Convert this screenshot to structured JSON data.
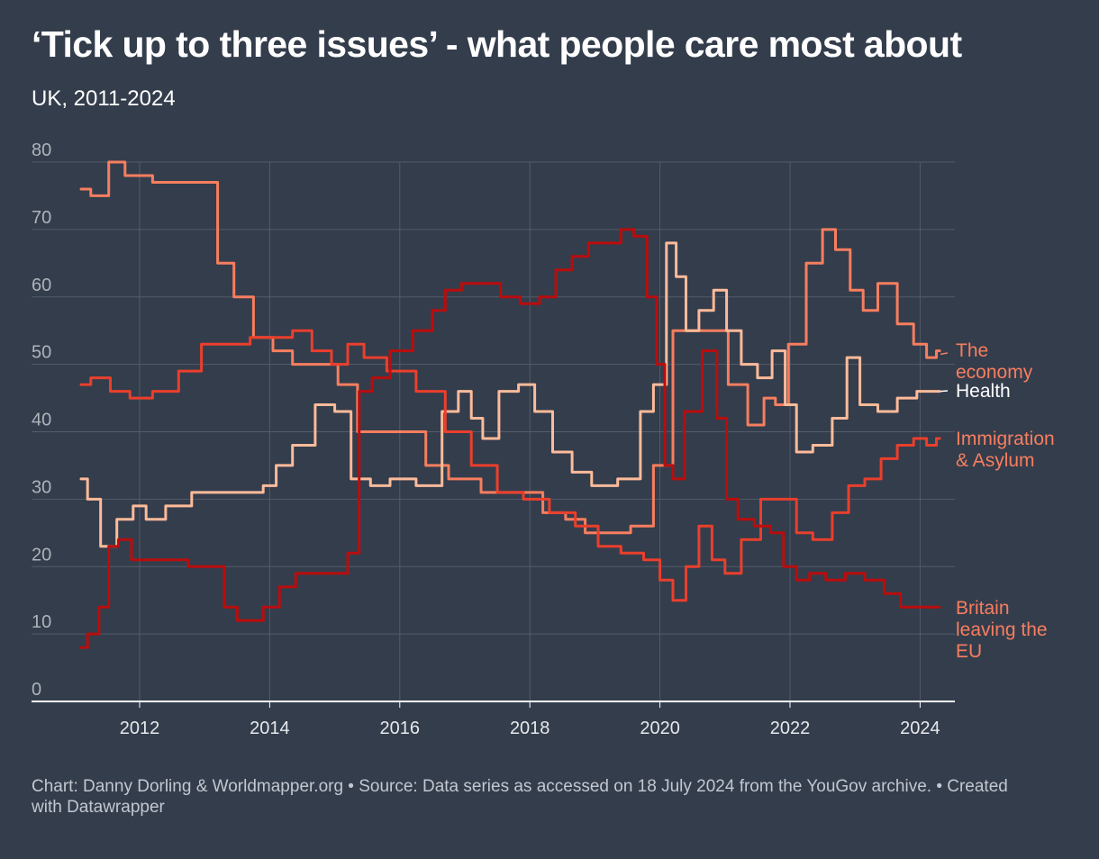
{
  "title": "‘Tick up to three issues’ - what people care most about",
  "subtitle": "UK, 2011-2024",
  "footer": "Chart: Danny Dorling & Worldmapper.org • Source: Data series as accessed on 18 July 2024 from the YouGov archive. • Created with Datawrapper",
  "colors": {
    "background": "#343d4c",
    "grid": "#535c6a",
    "tick_label": "#aeb3bb",
    "economy": "#f77e5f",
    "health": "#fdbb9a",
    "immigration": "#ea3f2c",
    "brexit": "#b90d0d"
  },
  "chart_data": {
    "type": "line",
    "title": "‘Tick up to three issues’ - what people care most about",
    "subtitle": "UK, 2011-2024",
    "xlabel": "",
    "ylabel": "",
    "xlim": [
      2011,
      2024.4
    ],
    "ylim": [
      0,
      80
    ],
    "x_ticks": [
      "2012",
      "2014",
      "2016",
      "2018",
      "2020",
      "2022",
      "2024"
    ],
    "y_ticks": [
      "0",
      "10",
      "20",
      "30",
      "40",
      "50",
      "60",
      "70",
      "80"
    ],
    "grid": true,
    "legend": "direct labels at right end of lines",
    "series": [
      {
        "name": "The economy",
        "label_lines": [
          "The",
          "economy"
        ],
        "color": "#f77e5f",
        "points": [
          [
            2011.1,
            76
          ],
          [
            2011.4,
            75
          ],
          [
            2011.65,
            80
          ],
          [
            2011.9,
            78
          ],
          [
            2012.5,
            77
          ],
          [
            2013.1,
            77
          ],
          [
            2013.3,
            65
          ],
          [
            2013.6,
            60
          ],
          [
            2013.9,
            54
          ],
          [
            2014.2,
            52
          ],
          [
            2014.5,
            50
          ],
          [
            2014.9,
            50
          ],
          [
            2015.2,
            47
          ],
          [
            2015.5,
            40
          ],
          [
            2016.3,
            40
          ],
          [
            2016.5,
            35
          ],
          [
            2017,
            33
          ],
          [
            2017.5,
            31
          ],
          [
            2018,
            31
          ],
          [
            2018.4,
            28
          ],
          [
            2018.7,
            27
          ],
          [
            2019,
            25
          ],
          [
            2019.4,
            25
          ],
          [
            2019.7,
            26
          ],
          [
            2020.1,
            35
          ],
          [
            2020.3,
            55
          ],
          [
            2020.6,
            55
          ],
          [
            2020.9,
            55
          ],
          [
            2021.2,
            47
          ],
          [
            2021.5,
            41
          ],
          [
            2021.7,
            45
          ],
          [
            2021.85,
            44
          ],
          [
            2022.1,
            53
          ],
          [
            2022.4,
            65
          ],
          [
            2022.6,
            70
          ],
          [
            2022.8,
            67
          ],
          [
            2023.05,
            61
          ],
          [
            2023.2,
            58
          ],
          [
            2023.5,
            62
          ],
          [
            2023.8,
            56
          ],
          [
            2024,
            53
          ],
          [
            2024.2,
            51
          ],
          [
            2024.3,
            52
          ]
        ]
      },
      {
        "name": "Health",
        "label_lines": [
          "Health"
        ],
        "color": "#fdbb9a",
        "points": [
          [
            2011.1,
            33
          ],
          [
            2011.3,
            30
          ],
          [
            2011.5,
            23
          ],
          [
            2011.8,
            27
          ],
          [
            2012,
            29
          ],
          [
            2012.2,
            27
          ],
          [
            2012.6,
            29
          ],
          [
            2013,
            31
          ],
          [
            2013.5,
            31
          ],
          [
            2013.8,
            31
          ],
          [
            2014,
            32
          ],
          [
            2014.2,
            35
          ],
          [
            2014.5,
            38
          ],
          [
            2014.9,
            44
          ],
          [
            2015.1,
            43
          ],
          [
            2015.4,
            33
          ],
          [
            2015.7,
            32
          ],
          [
            2016,
            33
          ],
          [
            2016.5,
            32
          ],
          [
            2016.8,
            43
          ],
          [
            2017.0,
            46
          ],
          [
            2017.2,
            42
          ],
          [
            2017.35,
            39
          ],
          [
            2017.7,
            46
          ],
          [
            2017.95,
            47
          ],
          [
            2018.2,
            43
          ],
          [
            2018.5,
            37
          ],
          [
            2018.8,
            34
          ],
          [
            2019.1,
            32
          ],
          [
            2019.6,
            33
          ],
          [
            2019.8,
            43
          ],
          [
            2020,
            47
          ],
          [
            2020.2,
            68
          ],
          [
            2020.3,
            63
          ],
          [
            2020.5,
            55
          ],
          [
            2020.7,
            58
          ],
          [
            2020.95,
            61
          ],
          [
            2021.1,
            55
          ],
          [
            2021.4,
            50
          ],
          [
            2021.6,
            48
          ],
          [
            2021.85,
            52
          ],
          [
            2022,
            44
          ],
          [
            2022.2,
            37
          ],
          [
            2022.5,
            38
          ],
          [
            2022.8,
            42
          ],
          [
            2022.95,
            51
          ],
          [
            2023.2,
            44
          ],
          [
            2023.5,
            43
          ],
          [
            2023.8,
            45
          ],
          [
            2024.1,
            46
          ],
          [
            2024.3,
            46
          ]
        ]
      },
      {
        "name": "Immigration & Asylum",
        "label_lines": [
          "Immigration",
          "& Asylum"
        ],
        "color": "#ea3f2c",
        "points": [
          [
            2011.1,
            47
          ],
          [
            2011.4,
            48
          ],
          [
            2011.7,
            46
          ],
          [
            2012,
            45
          ],
          [
            2012.4,
            46
          ],
          [
            2012.8,
            49
          ],
          [
            2013.1,
            53
          ],
          [
            2013.5,
            53
          ],
          [
            2013.9,
            54
          ],
          [
            2014.2,
            54
          ],
          [
            2014.5,
            55
          ],
          [
            2014.8,
            52
          ],
          [
            2015.1,
            50
          ],
          [
            2015.3,
            53
          ],
          [
            2015.6,
            51
          ],
          [
            2016,
            49
          ],
          [
            2016.5,
            46
          ],
          [
            2016.9,
            40
          ],
          [
            2017.3,
            35
          ],
          [
            2017.7,
            31
          ],
          [
            2018.1,
            30
          ],
          [
            2018.5,
            28
          ],
          [
            2018.9,
            26
          ],
          [
            2019.2,
            23
          ],
          [
            2019.6,
            22
          ],
          [
            2019.9,
            21
          ],
          [
            2020.1,
            18
          ],
          [
            2020.3,
            15
          ],
          [
            2020.5,
            20
          ],
          [
            2020.7,
            26
          ],
          [
            2020.9,
            21
          ],
          [
            2021.1,
            19
          ],
          [
            2021.4,
            24
          ],
          [
            2021.7,
            30
          ],
          [
            2022.0,
            30
          ],
          [
            2022.2,
            25
          ],
          [
            2022.5,
            24
          ],
          [
            2022.8,
            28
          ],
          [
            2023.0,
            32
          ],
          [
            2023.3,
            33
          ],
          [
            2023.5,
            36
          ],
          [
            2023.8,
            38
          ],
          [
            2024.0,
            39
          ],
          [
            2024.2,
            38
          ],
          [
            2024.3,
            39
          ]
        ]
      },
      {
        "name": "Britain leaving the EU",
        "label_lines": [
          "Britain",
          "leaving the",
          "EU"
        ],
        "color": "#b90d0d",
        "points": [
          [
            2011.1,
            8
          ],
          [
            2011.3,
            10
          ],
          [
            2011.45,
            14
          ],
          [
            2011.6,
            23
          ],
          [
            2011.75,
            24
          ],
          [
            2012.0,
            21
          ],
          [
            2012.5,
            21
          ],
          [
            2013,
            20
          ],
          [
            2013.2,
            20
          ],
          [
            2013.4,
            14
          ],
          [
            2013.6,
            12
          ],
          [
            2013.8,
            12
          ],
          [
            2014.0,
            14
          ],
          [
            2014.3,
            17
          ],
          [
            2014.5,
            19
          ],
          [
            2014.9,
            19
          ],
          [
            2015.1,
            19
          ],
          [
            2015.3,
            22
          ],
          [
            2015.45,
            46
          ],
          [
            2015.7,
            48
          ],
          [
            2016,
            52
          ],
          [
            2016.4,
            55
          ],
          [
            2016.6,
            58
          ],
          [
            2016.8,
            61
          ],
          [
            2017.1,
            62
          ],
          [
            2017.4,
            62
          ],
          [
            2017.7,
            60
          ],
          [
            2018.0,
            59
          ],
          [
            2018.3,
            60
          ],
          [
            2018.5,
            64
          ],
          [
            2018.8,
            66
          ],
          [
            2019.0,
            68
          ],
          [
            2019.3,
            68
          ],
          [
            2019.5,
            70
          ],
          [
            2019.7,
            69
          ],
          [
            2019.9,
            60
          ],
          [
            2020.0,
            50
          ],
          [
            2020.15,
            35
          ],
          [
            2020.25,
            33
          ],
          [
            2020.5,
            43
          ],
          [
            2020.8,
            52
          ],
          [
            2020.95,
            42
          ],
          [
            2021.1,
            30
          ],
          [
            2021.3,
            27
          ],
          [
            2021.6,
            26
          ],
          [
            2021.8,
            25
          ],
          [
            2022.0,
            20
          ],
          [
            2022.2,
            18
          ],
          [
            2022.4,
            19
          ],
          [
            2022.7,
            18
          ],
          [
            2023.0,
            19
          ],
          [
            2023.3,
            18
          ],
          [
            2023.6,
            16
          ],
          [
            2023.8,
            14
          ],
          [
            2024.1,
            14
          ],
          [
            2024.3,
            14
          ]
        ]
      }
    ]
  }
}
